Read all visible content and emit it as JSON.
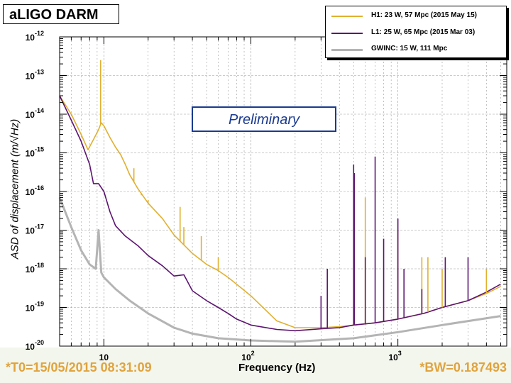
{
  "chart_data": {
    "type": "line",
    "title": "aLIGO DARM",
    "xlabel": "Frequency (Hz)",
    "ylabel": "ASD of displacement (m/√Hz)",
    "xscale": "log",
    "yscale": "log",
    "xlim": [
      5,
      5500
    ],
    "ylim": [
      1e-20,
      1e-12
    ],
    "x_ticks": [
      "10",
      "10^2",
      "10^3"
    ],
    "y_ticks": [
      "10^-12",
      "10^-13",
      "10^-14",
      "10^-15",
      "10^-16",
      "10^-17",
      "10^-18",
      "10^-19",
      "10^-20"
    ],
    "grid": true,
    "legend_position": "top-right",
    "annotation": "Preliminary",
    "footer_left": "*T0=15/05/2015 08:31:09",
    "footer_right": "*BW=0.187493",
    "series": [
      {
        "name": "H1: 23 W, 57 Mpc (2015 May 15)",
        "color": "#e0b030",
        "x": [
          5,
          6,
          7,
          7.8,
          8.5,
          9.2,
          9.6,
          10,
          11,
          12,
          13,
          14,
          15,
          17,
          20,
          25,
          30,
          40,
          50,
          60,
          70,
          80,
          100,
          150,
          200,
          300,
          400,
          500,
          700,
          1000,
          1500,
          2000,
          3000,
          4000,
          5000
        ],
        "y": [
          3e-14,
          1e-14,
          3e-15,
          1.2e-15,
          2.2e-15,
          4e-15,
          6e-15,
          5e-15,
          2.5e-15,
          1.4e-15,
          9e-16,
          5e-16,
          2.7e-16,
          1.2e-16,
          5e-17,
          2e-17,
          7.5e-18,
          2.5e-18,
          1.3e-18,
          9e-19,
          6e-19,
          4e-19,
          2e-19,
          4.5e-20,
          3e-20,
          3e-20,
          3.2e-20,
          3.5e-20,
          4e-20,
          5e-20,
          7e-20,
          1e-19,
          1.5e-19,
          2.3e-19,
          3.5e-19
        ]
      },
      {
        "name": "L1: 25 W, 65 Mpc (2015 Mar 03)",
        "color": "#5c1470",
        "x": [
          5,
          6,
          7,
          8,
          8.5,
          9.2,
          10,
          11,
          12,
          14,
          17,
          20,
          25,
          30,
          35,
          40,
          50,
          60,
          70,
          80,
          100,
          150,
          200,
          300,
          400,
          500,
          700,
          1000,
          1500,
          2000,
          3000,
          4000,
          5000
        ],
        "y": [
          3e-14,
          7e-15,
          2e-15,
          5e-16,
          1.6e-16,
          1.6e-16,
          1e-16,
          3e-17,
          1.3e-17,
          7e-18,
          4e-18,
          2.2e-18,
          1.2e-18,
          6.5e-19,
          7e-19,
          2.7e-19,
          1.5e-19,
          1e-19,
          7e-20,
          5e-20,
          3.5e-20,
          2.7e-20,
          2.5e-20,
          2.8e-20,
          3e-20,
          3.5e-20,
          4e-20,
          5e-20,
          7e-20,
          1e-19,
          1.5e-19,
          2.5e-19,
          4e-19
        ]
      },
      {
        "name": "GWINC: 15 W, 111 Mpc",
        "color": "#b4b4b4",
        "x": [
          5,
          6,
          7,
          8,
          8.8,
          9.2,
          9.6,
          10,
          12,
          15,
          20,
          30,
          40,
          60,
          100,
          200,
          500,
          1000,
          2000,
          5000
        ],
        "y": [
          7e-17,
          1.2e-17,
          3e-18,
          1.3e-18,
          1e-18,
          1e-17,
          8e-19,
          6e-19,
          3e-19,
          1.5e-19,
          7e-20,
          3e-20,
          2.1e-20,
          1.6e-20,
          1.4e-20,
          1.3e-20,
          1.6e-20,
          2.3e-20,
          3.5e-20,
          6e-20
        ]
      }
    ],
    "spike_lines": [
      {
        "series": "H1",
        "freqs": [
          9.5,
          14,
          16,
          18,
          20,
          33,
          35,
          46,
          60,
          500,
          505,
          600,
          1000,
          1455,
          1600,
          2000,
          4000
        ],
        "peaks": [
          2.5e-13,
          5e-16,
          4e-16,
          8e-17,
          6e-17,
          4e-17,
          1.2e-17,
          7e-18,
          2e-18,
          1e-16,
          2e-18,
          7e-17,
          1e-17,
          2e-18,
          2e-18,
          1e-18,
          1e-18
        ]
      },
      {
        "series": "L1",
        "freqs": [
          300,
          331,
          500,
          505,
          600,
          700,
          800,
          1000,
          1100,
          1455,
          2100,
          3000
        ],
        "peaks": [
          2e-19,
          1e-18,
          5e-16,
          3e-16,
          2e-18,
          8e-16,
          6e-18,
          2e-17,
          1e-18,
          3e-19,
          2e-18,
          2e-18
        ]
      }
    ]
  }
}
